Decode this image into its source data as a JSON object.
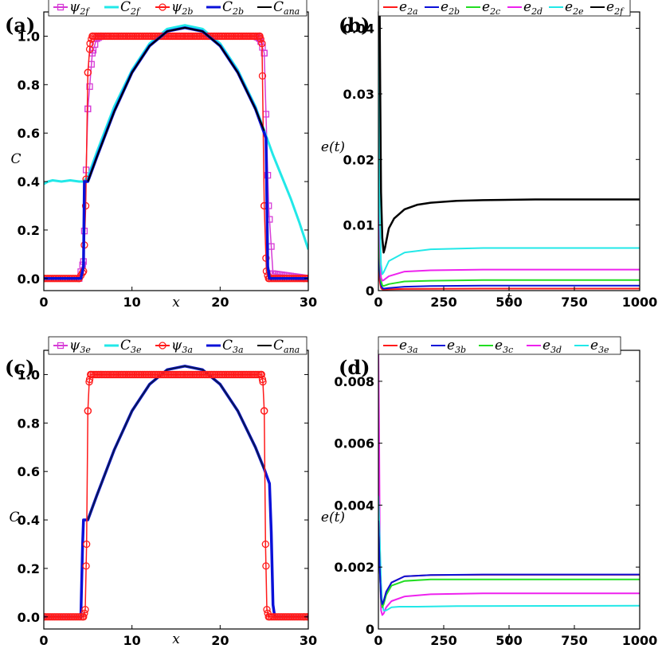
{
  "chart_data": [
    {
      "panel": "(a)",
      "type": "line",
      "xlabel": "x",
      "ylabel": "C",
      "xlim": [
        0,
        30
      ],
      "ylim": [
        -0.05,
        1.1
      ],
      "xticks": [
        0,
        10,
        20,
        30
      ],
      "yticks": [
        0,
        0.2,
        0.4,
        0.6,
        0.8,
        1.0
      ],
      "yticklabels": [
        "0.0",
        "0.2",
        "0.4",
        "0.6",
        "0.8",
        "1.0"
      ],
      "legend": [
        {
          "base": "ψ",
          "sub": "2f",
          "color": "#d63cd6",
          "marker": "square"
        },
        {
          "base": "C",
          "sub": "2f",
          "color": "#22e8e8",
          "marker": "none"
        },
        {
          "base": "ψ",
          "sub": "2b",
          "color": "#ff1a1a",
          "marker": "circle"
        },
        {
          "base": "C",
          "sub": "2b",
          "color": "#0a10d8",
          "marker": "none"
        },
        {
          "base": "C",
          "sub": "ana",
          "color": "#000000",
          "marker": "none"
        }
      ],
      "series": [
        {
          "name": "ψ2f",
          "color": "#d63cd6",
          "marker": "square",
          "width": 1.5,
          "x": [
            0,
            4.0,
            4.5,
            5.0,
            5.5,
            6.0,
            6.5,
            24.0,
            24.5,
            25.0,
            25.5,
            26.0,
            30
          ],
          "y": [
            0,
            0,
            0.07,
            0.7,
            0.93,
            0.99,
            1,
            1,
            0.99,
            0.93,
            0.3,
            0.02,
            0
          ]
        },
        {
          "name": "C2f",
          "color": "#22e8e8",
          "marker": "none",
          "width": 3,
          "x": [
            0,
            0.5,
            1,
            2,
            3,
            4,
            4.5,
            5,
            6,
            8,
            10,
            12,
            14,
            16,
            18,
            20,
            22,
            24,
            25,
            26,
            27,
            28,
            29,
            30
          ],
          "y": [
            0.39,
            0.4,
            0.405,
            0.4,
            0.405,
            0.4,
            0.4,
            0.42,
            0.52,
            0.71,
            0.86,
            0.97,
            1.03,
            1.045,
            1.03,
            0.97,
            0.86,
            0.71,
            0.61,
            0.51,
            0.42,
            0.33,
            0.23,
            0.12
          ]
        },
        {
          "name": "ψ2b",
          "color": "#ff1a1a",
          "marker": "circle",
          "width": 1.5,
          "x": [
            0,
            4.0,
            4.5,
            4.75,
            5.0,
            5.25,
            5.5,
            24.5,
            24.75,
            25.0,
            25.25,
            25.5,
            30
          ],
          "y": [
            0,
            0,
            0.03,
            0.3,
            0.85,
            0.97,
            1,
            1,
            0.97,
            0.3,
            0.03,
            0,
            0
          ]
        },
        {
          "name": "C2b",
          "color": "#0a10d8",
          "marker": "none",
          "width": 3.5,
          "x": [
            0,
            4.2,
            4.5,
            4.6,
            5,
            6,
            8,
            10,
            12,
            14,
            16,
            18,
            20,
            22,
            24,
            25,
            25.2,
            25.4,
            25.6,
            30
          ],
          "y": [
            0,
            0,
            0.05,
            0.4,
            0.4,
            0.5,
            0.69,
            0.85,
            0.96,
            1.02,
            1.035,
            1.02,
            0.96,
            0.85,
            0.7,
            0.6,
            0.58,
            0.05,
            0,
            0
          ]
        },
        {
          "name": "Cana",
          "color": "#000000",
          "marker": "none",
          "width": 2,
          "x": [
            5,
            6,
            8,
            10,
            12,
            14,
            16,
            18,
            20,
            22,
            24,
            25
          ],
          "y": [
            0.4,
            0.5,
            0.69,
            0.85,
            0.96,
            1.02,
            1.035,
            1.02,
            0.96,
            0.85,
            0.7,
            0.61
          ]
        }
      ]
    },
    {
      "panel": "(b)",
      "type": "line",
      "xlabel": "t",
      "ylabel": "e(t)",
      "xlim": [
        0,
        1000
      ],
      "ylim": [
        0,
        0.0425
      ],
      "xticks": [
        0,
        250,
        500,
        750,
        1000
      ],
      "yticks": [
        0,
        0.01,
        0.02,
        0.03,
        0.04
      ],
      "yticklabels": [
        "0",
        "0.01",
        "0.02",
        "0.03",
        "0.04"
      ],
      "legend": [
        {
          "base": "e",
          "sub": "2a",
          "color": "#ff1a1a"
        },
        {
          "base": "e",
          "sub": "2b",
          "color": "#0a10d8"
        },
        {
          "base": "e",
          "sub": "2c",
          "color": "#22dd22"
        },
        {
          "base": "e",
          "sub": "2d",
          "color": "#ee22ee"
        },
        {
          "base": "e",
          "sub": "2e",
          "color": "#22e8e8"
        },
        {
          "base": "e",
          "sub": "2f",
          "color": "#000000"
        }
      ],
      "series": [
        {
          "name": "e2a",
          "color": "#ff1a1a",
          "width": 2,
          "x": [
            0,
            5,
            10,
            15,
            20,
            40,
            100,
            200,
            400,
            1000
          ],
          "y": [
            0.004,
            0.0015,
            0.0004,
            0.0002,
            0.00015,
            0.0002,
            0.00025,
            0.00028,
            0.0003,
            0.0003
          ]
        },
        {
          "name": "e2b",
          "color": "#0a10d8",
          "width": 2,
          "x": [
            0,
            5,
            10,
            15,
            20,
            40,
            100,
            200,
            400,
            1000
          ],
          "y": [
            0.008,
            0.003,
            0.0009,
            0.0004,
            0.0003,
            0.0004,
            0.0006,
            0.0007,
            0.00075,
            0.00075
          ]
        },
        {
          "name": "e2c",
          "color": "#22dd22",
          "width": 2,
          "x": [
            0,
            5,
            10,
            15,
            20,
            40,
            100,
            200,
            400,
            1000
          ],
          "y": [
            0.015,
            0.005,
            0.0015,
            0.0008,
            0.0007,
            0.001,
            0.0014,
            0.0015,
            0.0016,
            0.0016
          ]
        },
        {
          "name": "e2d",
          "color": "#ee22ee",
          "width": 2,
          "x": [
            0,
            5,
            10,
            15,
            20,
            40,
            100,
            200,
            400,
            1000
          ],
          "y": [
            0.03,
            0.008,
            0.002,
            0.0015,
            0.0016,
            0.0022,
            0.0029,
            0.0031,
            0.0032,
            0.0032
          ]
        },
        {
          "name": "e2e",
          "color": "#22e8e8",
          "width": 2,
          "x": [
            0,
            5,
            10,
            15,
            20,
            40,
            100,
            200,
            400,
            1000
          ],
          "y": [
            0.0425,
            0.012,
            0.004,
            0.0025,
            0.0028,
            0.0045,
            0.0058,
            0.0063,
            0.0065,
            0.0065
          ]
        },
        {
          "name": "e2f",
          "color": "#000000",
          "width": 2.5,
          "x": [
            5,
            7,
            10,
            15,
            20,
            25,
            40,
            60,
            100,
            150,
            200,
            300,
            400,
            600,
            1000
          ],
          "y": [
            0.0425,
            0.03,
            0.015,
            0.008,
            0.0058,
            0.0065,
            0.0095,
            0.011,
            0.0124,
            0.0131,
            0.0134,
            0.0137,
            0.0138,
            0.0139,
            0.0139
          ]
        }
      ]
    },
    {
      "panel": "(c)",
      "type": "line",
      "xlabel": "x",
      "ylabel": "C",
      "xlim": [
        0,
        30
      ],
      "ylim": [
        -0.05,
        1.1
      ],
      "xticks": [
        0,
        10,
        20,
        30
      ],
      "yticks": [
        0,
        0.2,
        0.4,
        0.6,
        0.8,
        1.0
      ],
      "yticklabels": [
        "0.0",
        "0.2",
        "0.4",
        "0.6",
        "0.8",
        "1.0"
      ],
      "legend": [
        {
          "base": "ψ",
          "sub": "3e",
          "color": "#d63cd6",
          "marker": "square"
        },
        {
          "base": "C",
          "sub": "3e",
          "color": "#22e8e8",
          "marker": "none"
        },
        {
          "base": "ψ",
          "sub": "3a",
          "color": "#ff1a1a",
          "marker": "circle"
        },
        {
          "base": "C",
          "sub": "3a",
          "color": "#0a10d8",
          "marker": "none"
        },
        {
          "base": "C",
          "sub": "ana",
          "color": "#000000",
          "marker": "none"
        }
      ],
      "series": [
        {
          "name": "C3a",
          "color": "#0a10d8",
          "marker": "none",
          "width": 3.5,
          "x": [
            0,
            4.2,
            4.4,
            4.5,
            5,
            6,
            8,
            10,
            12,
            14,
            16,
            18,
            20,
            22,
            24,
            25,
            25.4,
            25.6,
            25.8,
            26,
            26.2,
            30
          ],
          "y": [
            0,
            0,
            0.3,
            0.4,
            0.4,
            0.5,
            0.69,
            0.85,
            0.96,
            1.02,
            1.035,
            1.02,
            0.96,
            0.85,
            0.7,
            0.61,
            0.57,
            0.55,
            0.35,
            0.05,
            0,
            0
          ]
        },
        {
          "name": "Cana",
          "color": "#0a1a55",
          "marker": "none",
          "width": 2,
          "x": [
            5,
            6,
            8,
            10,
            12,
            14,
            16,
            18,
            20,
            22,
            24,
            25
          ],
          "y": [
            0.4,
            0.5,
            0.69,
            0.85,
            0.96,
            1.02,
            1.035,
            1.02,
            0.96,
            0.85,
            0.7,
            0.61
          ]
        },
        {
          "name": "ψ3a",
          "color": "#ff1a1a",
          "marker": "circle",
          "width": 1.5,
          "x": [
            0,
            4.5,
            4.7,
            4.85,
            5.0,
            5.15,
            5.3,
            24.7,
            24.85,
            25.0,
            25.15,
            25.3,
            25.5,
            30
          ],
          "y": [
            0,
            0,
            0.03,
            0.3,
            0.85,
            0.97,
            1,
            1,
            0.97,
            0.85,
            0.3,
            0.03,
            0,
            0
          ]
        }
      ]
    },
    {
      "panel": "(d)",
      "type": "line",
      "xlabel": "t",
      "ylabel": "e(t)",
      "xlim": [
        0,
        1000
      ],
      "ylim": [
        0,
        0.009
      ],
      "xticks": [
        0,
        250,
        500,
        750,
        1000
      ],
      "yticks": [
        0,
        0.002,
        0.004,
        0.006,
        0.008
      ],
      "yticklabels": [
        "0",
        "0.002",
        "0.004",
        "0.006",
        "0.008"
      ],
      "legend": [
        {
          "base": "e",
          "sub": "3a",
          "color": "#ff1a1a"
        },
        {
          "base": "e",
          "sub": "3b",
          "color": "#0a10d8"
        },
        {
          "base": "e",
          "sub": "3c",
          "color": "#22dd22"
        },
        {
          "base": "e",
          "sub": "3d",
          "color": "#ee22ee"
        },
        {
          "base": "e",
          "sub": "3e",
          "color": "#22e8e8"
        }
      ],
      "series": [
        {
          "name": "e3d",
          "color": "#ee22ee",
          "width": 2,
          "x": [
            0,
            3,
            6,
            10,
            15,
            20,
            30,
            50,
            100,
            200,
            400,
            1000
          ],
          "y": [
            0.009,
            0.006,
            0.002,
            0.0006,
            0.00045,
            0.0005,
            0.0007,
            0.0009,
            0.00105,
            0.00112,
            0.00115,
            0.00115
          ]
        },
        {
          "name": "e3e",
          "color": "#22e8e8",
          "width": 2,
          "x": [
            0,
            5,
            10,
            15,
            20,
            30,
            50,
            80,
            150,
            300,
            1000
          ],
          "y": [
            0.0043,
            0.003,
            0.0015,
            0.0008,
            0.0006,
            0.0006,
            0.0007,
            0.00072,
            0.00072,
            0.00074,
            0.00075
          ]
        },
        {
          "name": "e3a",
          "color": "#ff1a1a",
          "width": 2,
          "x": [
            0,
            5,
            10,
            15,
            20,
            30,
            50,
            100,
            200,
            400,
            1000
          ],
          "y": [
            0.0035,
            0.002,
            0.001,
            0.0008,
            0.0009,
            0.0012,
            0.0015,
            0.0017,
            0.00174,
            0.00175,
            0.00175
          ]
        },
        {
          "name": "e3c",
          "color": "#22dd22",
          "width": 2,
          "x": [
            0,
            5,
            10,
            15,
            20,
            30,
            50,
            100,
            200,
            400,
            1000
          ],
          "y": [
            0.0035,
            0.002,
            0.0009,
            0.0007,
            0.0008,
            0.0011,
            0.0014,
            0.00155,
            0.0016,
            0.0016,
            0.0016
          ]
        },
        {
          "name": "e3b",
          "color": "#0a10d8",
          "width": 2,
          "x": [
            0,
            5,
            10,
            15,
            20,
            30,
            50,
            100,
            200,
            400,
            1000
          ],
          "y": [
            0.0035,
            0.002,
            0.001,
            0.0008,
            0.0009,
            0.0012,
            0.0015,
            0.0017,
            0.00174,
            0.00176,
            0.00176
          ]
        }
      ]
    }
  ]
}
